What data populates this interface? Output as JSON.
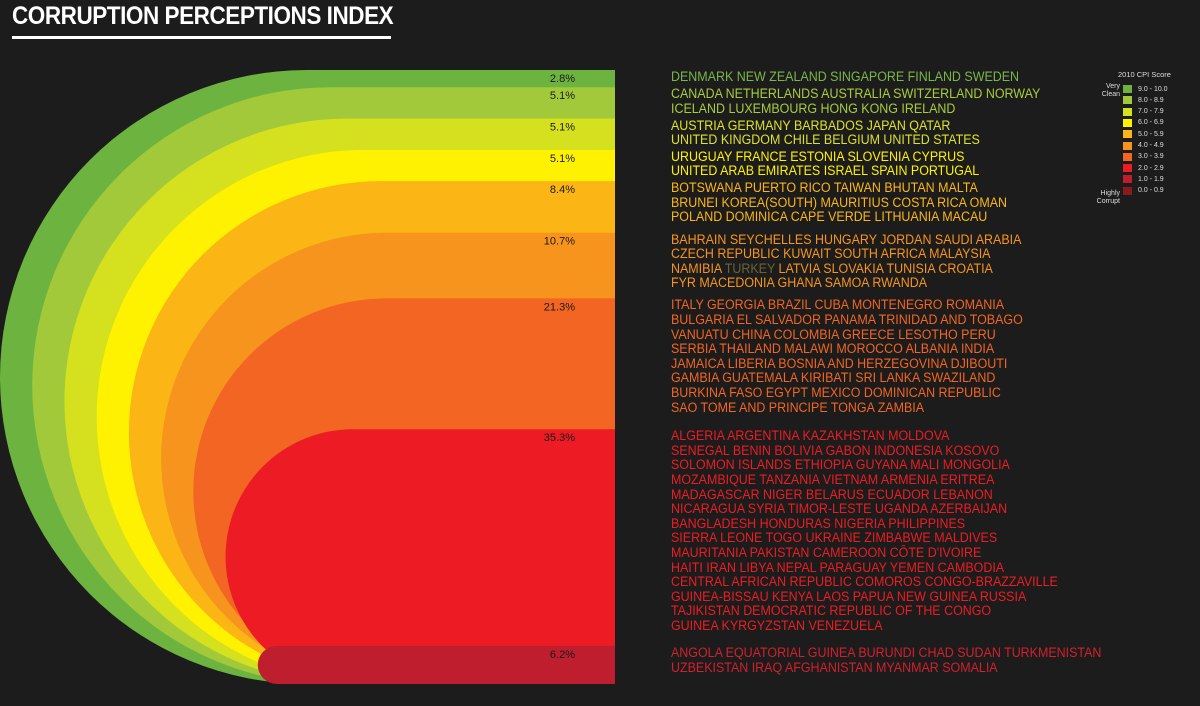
{
  "title": "CORRUPTION PERCEPTIONS INDEX",
  "legend": {
    "title": "2010 CPI Score",
    "top_label": [
      "Very",
      "Clean"
    ],
    "bottom_label": [
      "Highly",
      "Corrupt"
    ],
    "items": [
      {
        "range": "9.0 - 10.0",
        "color": "#6db33f"
      },
      {
        "range": "8.0 - 8.9",
        "color": "#a1c93a"
      },
      {
        "range": "7.0 - 7.9",
        "color": "#d5e01e"
      },
      {
        "range": "6.0 - 6.9",
        "color": "#fff200"
      },
      {
        "range": "5.0 - 5.9",
        "color": "#fbb615"
      },
      {
        "range": "4.0 - 4.9",
        "color": "#f7941d"
      },
      {
        "range": "3.0 - 3.9",
        "color": "#f26522"
      },
      {
        "range": "2.0 - 2.9",
        "color": "#ed1c24"
      },
      {
        "range": "1.0 - 1.9",
        "color": "#be1e2d"
      },
      {
        "range": "0.0 - 0.9",
        "color": "#8b1a1a"
      }
    ]
  },
  "chart_data": {
    "type": "bar",
    "title": "CORRUPTION PERCEPTIONS INDEX",
    "categories": [
      "9.0 - 10.0",
      "8.0 - 8.9",
      "7.0 - 7.9",
      "6.0 - 6.9",
      "5.0 - 5.9",
      "4.0 - 4.9",
      "3.0 - 3.9",
      "2.0 - 2.9",
      "1.0 - 1.9"
    ],
    "values": [
      2.8,
      5.1,
      5.1,
      5.1,
      8.4,
      10.7,
      21.3,
      35.3,
      6.2
    ],
    "value_labels": [
      "2.8%",
      "5.1%",
      "5.1%",
      "5.1%",
      "8.4%",
      "10.7%",
      "21.3%",
      "35.3%",
      "6.2%"
    ]
  },
  "tiers": [
    {
      "color": "#7ab648",
      "lines": [
        [
          {
            "t": "DENMARK NEW ZEALAND SINGAPORE FINLAND SWEDEN"
          }
        ]
      ]
    },
    {
      "color": "#a8cc3c",
      "lines": [
        [
          {
            "t": "CANADA NETHERLANDS AUSTRALIA SWITZERLAND NORWAY"
          }
        ],
        [
          {
            "t": "ICELAND LUXEMBOURG HONG KONG IRELAND"
          }
        ]
      ]
    },
    {
      "color": "#dce12a",
      "lines": [
        [
          {
            "t": "AUSTRIA GERMANY BARBADOS JAPAN QATAR"
          }
        ],
        [
          {
            "t": "UNITED KINGDOM CHILE BELGIUM UNITED STATES"
          }
        ]
      ]
    },
    {
      "color": "#fff200",
      "lines": [
        [
          {
            "t": "URUGUAY FRANCE ESTONIA SLOVENIA CYPRUS"
          }
        ],
        [
          {
            "t": "UNITED ARAB EMIRATES ISRAEL SPAIN PORTUGAL"
          }
        ]
      ]
    },
    {
      "color": "#fbb615",
      "lines": [
        [
          {
            "t": "BOTSWANA PUERTO RICO TAIWAN BHUTAN MALTA"
          }
        ],
        [
          {
            "t": "BRUNEI KOREA(SOUTH) MAURITIUS COSTA RICA OMAN"
          }
        ],
        [
          {
            "t": "POLAND DOMINICA CAPE VERDE LITHUANIA MACAU"
          }
        ]
      ]
    },
    {
      "color": "#f7941d",
      "lines": [
        [
          {
            "t": "BAHRAIN SEYCHELLES HUNGARY JORDAN SAUDI ARABIA"
          }
        ],
        [
          {
            "t": "CZECH REPUBLIC KUWAIT SOUTH AFRICA MALAYSIA"
          }
        ],
        [
          {
            "t": "NAMIBIA "
          },
          {
            "t": "TURKEY",
            "hl": true
          },
          {
            "t": " LATVIA SLOVAKIA TUNISIA CROATIA"
          }
        ],
        [
          {
            "t": "FYR MACEDONIA GHANA SAMOA RWANDA"
          }
        ]
      ]
    },
    {
      "color": "#f26522",
      "lines": [
        [
          {
            "t": "ITALY GEORGIA BRAZIL CUBA MONTENEGRO ROMANIA"
          }
        ],
        [
          {
            "t": "BULGARIA EL SALVADOR PANAMA TRINIDAD AND TOBAGO"
          }
        ],
        [
          {
            "t": "VANUATU CHINA COLOMBIA GREECE LESOTHO PERU"
          }
        ],
        [
          {
            "t": "SERBIA THAILAND MALAWI MOROCCO ALBANIA INDIA"
          }
        ],
        [
          {
            "t": "JAMAICA LIBERIA BOSNIA AND HERZEGOVINA DJIBOUTI"
          }
        ],
        [
          {
            "t": "GAMBIA GUATEMALA KIRIBATI SRI LANKA SWAZILAND"
          }
        ],
        [
          {
            "t": "BURKINA FASO EGYPT MEXICO DOMINICAN REPUBLIC"
          }
        ],
        [
          {
            "t": "SAO TOME AND PRINCIPE TONGA ZAMBIA"
          }
        ]
      ]
    },
    {
      "color": "#ed1c24",
      "lines": [
        [
          {
            "t": "ALGERIA ARGENTINA KAZAKHSTAN MOLDOVA"
          }
        ],
        [
          {
            "t": "SENEGAL BENIN BOLIVIA GABON INDONESIA KOSOVO"
          }
        ],
        [
          {
            "t": "SOLOMON ISLANDS ETHIOPIA GUYANA MALI MONGOLIA"
          }
        ],
        [
          {
            "t": "MOZAMBIQUE TANZANIA VIETNAM ARMENIA ERITREA"
          }
        ],
        [
          {
            "t": "MADAGASCAR NIGER BELARUS ECUADOR LEBANON"
          }
        ],
        [
          {
            "t": "NICARAGUA SYRIA TIMOR-LESTE UGANDA AZERBAIJAN"
          }
        ],
        [
          {
            "t": "BANGLADESH HONDURAS NIGERIA PHILIPPINES"
          }
        ],
        [
          {
            "t": "SIERRA LEONE TOGO UKRAINE ZIMBABWE MALDIVES"
          }
        ],
        [
          {
            "t": "MAURITANIA PAKISTAN CAMEROON CÔTE D'IVOIRE"
          }
        ],
        [
          {
            "t": "HAITI IRAN LIBYA NEPAL PARAGUAY YEMEN CAMBODIA"
          }
        ],
        [
          {
            "t": "CENTRAL AFRICAN REPUBLIC COMOROS CONGO-BRAZZAVILLE"
          }
        ],
        [
          {
            "t": "GUINEA-BISSAU KENYA LAOS PAPUA NEW GUINEA RUSSIA"
          }
        ],
        [
          {
            "t": "TAJIKISTAN DEMOCRATIC REPUBLIC OF THE CONGO"
          }
        ],
        [
          {
            "t": "GUINEA KYRGYZSTAN VENEZUELA"
          }
        ]
      ]
    },
    {
      "color": "#d1202e",
      "lines": [
        [
          {
            "t": "ANGOLA EQUATORIAL GUINEA BURUNDI CHAD SUDAN TURKMENISTAN"
          }
        ],
        [
          {
            "t": "UZBEKISTAN IRAQ  AFGHANISTAN MYANMAR SOMALIA"
          }
        ]
      ]
    }
  ]
}
